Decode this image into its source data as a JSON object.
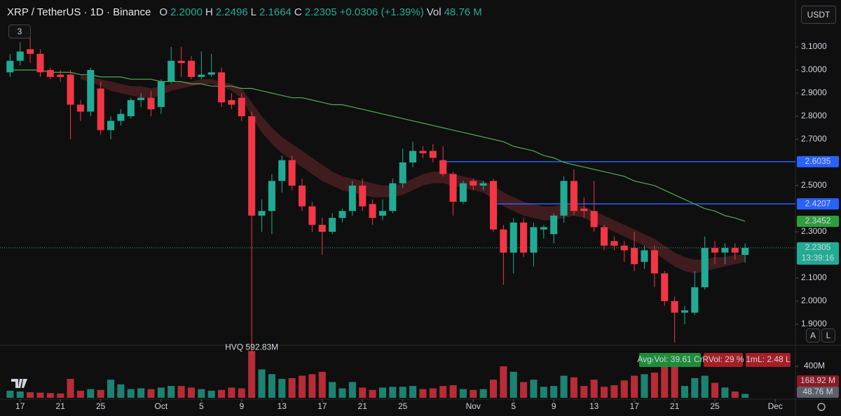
{
  "header": {
    "symbol": "XRP / TetherUS · 1D · Binance",
    "o_label": "O",
    "open": "2.2000",
    "h_label": "H",
    "high": "2.2496",
    "l_label": "L",
    "low": "2.1664",
    "c_label": "C",
    "close": "2.2305",
    "change": "+0.0306 (+1.39%)",
    "vol_label": "Vol",
    "volume": "48.76 M",
    "indicators": "3",
    "currency": "USDT",
    "buttons": [
      "A",
      "L"
    ]
  },
  "chart_data": {
    "type": "candlestick",
    "x": [
      "Sep 16",
      "Sep 17",
      "Sep 18",
      "Sep 19",
      "Sep 20",
      "Sep 21",
      "Sep 22",
      "Sep 23",
      "Sep 24",
      "Sep 25",
      "Sep 26",
      "Sep 27",
      "Sep 28",
      "Sep 29",
      "Sep 30",
      "Oct 1",
      "Oct 2",
      "Oct 3",
      "Oct 4",
      "Oct 5",
      "Oct 6",
      "Oct 7",
      "Oct 8",
      "Oct 9",
      "Oct 10",
      "Oct 11",
      "Oct 12",
      "Oct 13",
      "Oct 14",
      "Oct 15",
      "Oct 16",
      "Oct 17",
      "Oct 18",
      "Oct 19",
      "Oct 20",
      "Oct 21",
      "Oct 22",
      "Oct 23",
      "Oct 24",
      "Oct 25",
      "Oct 26",
      "Oct 27",
      "Oct 28",
      "Oct 29",
      "Oct 30",
      "Oct 31",
      "Nov 1",
      "Nov 2",
      "Nov 3",
      "Nov 4",
      "Nov 5",
      "Nov 6",
      "Nov 7",
      "Nov 8",
      "Nov 9",
      "Nov 10",
      "Nov 11",
      "Nov 12",
      "Nov 13",
      "Nov 14",
      "Nov 15",
      "Nov 16",
      "Nov 17",
      "Nov 18",
      "Nov 19",
      "Nov 20",
      "Nov 21",
      "Nov 22",
      "Nov 23",
      "Nov 24",
      "Nov 25",
      "Nov 26",
      "Nov 27",
      "Nov 28"
    ],
    "xlim": [
      "Sep 15",
      "Dec 3"
    ],
    "xticks": [
      {
        "value": "Sep 17",
        "label": "17"
      },
      {
        "value": "Sep 21",
        "label": "21"
      },
      {
        "value": "Sep 25",
        "label": "25"
      },
      {
        "value": "Oct 1",
        "label": "Oct"
      },
      {
        "value": "Oct 5",
        "label": "5"
      },
      {
        "value": "Oct 9",
        "label": "9"
      },
      {
        "value": "Oct 13",
        "label": "13"
      },
      {
        "value": "Oct 17",
        "label": "17"
      },
      {
        "value": "Oct 21",
        "label": "21"
      },
      {
        "value": "Oct 25",
        "label": "25"
      },
      {
        "value": "Nov 1",
        "label": "Nov"
      },
      {
        "value": "Nov 5",
        "label": "5"
      },
      {
        "value": "Nov 9",
        "label": "9"
      },
      {
        "value": "Nov 13",
        "label": "13"
      },
      {
        "value": "Nov 17",
        "label": "17"
      },
      {
        "value": "Nov 21",
        "label": "21"
      },
      {
        "value": "Nov 25",
        "label": "25"
      },
      {
        "value": "Dec 1",
        "label": "Dec"
      }
    ],
    "open": [
      2.99,
      3.04,
      3.09,
      3.07,
      3.0,
      2.98,
      2.98,
      2.85,
      2.82,
      2.92,
      2.74,
      2.78,
      2.8,
      2.87,
      2.88,
      2.84,
      2.95,
      3.04,
      3.04,
      2.97,
      2.98,
      2.99,
      2.87,
      2.88,
      2.8,
      2.37,
      2.39,
      2.52,
      2.61,
      2.5,
      2.41,
      2.33,
      2.3,
      2.36,
      2.39,
      2.5,
      2.42,
      2.37,
      2.39,
      2.51,
      2.6,
      2.65,
      2.65,
      2.61,
      2.55,
      2.43,
      2.52,
      2.5,
      2.52,
      2.31,
      2.21,
      2.34,
      2.21,
      2.31,
      2.29,
      2.37,
      2.52,
      2.4,
      2.39,
      2.32,
      2.26,
      2.24,
      2.23,
      2.17,
      2.22,
      2.12,
      2.0,
      1.95,
      1.95,
      2.06,
      2.23,
      2.21,
      2.23,
      2.2
    ],
    "high": [
      3.07,
      3.12,
      3.14,
      3.09,
      3.01,
      3.0,
      3.0,
      2.87,
      3.01,
      2.95,
      2.8,
      2.83,
      2.88,
      2.9,
      2.91,
      2.96,
      3.1,
      3.1,
      3.06,
      3.08,
      3.07,
      3.01,
      2.9,
      2.9,
      2.82,
      2.44,
      2.55,
      2.63,
      2.63,
      2.53,
      2.43,
      2.36,
      2.38,
      2.4,
      2.52,
      2.53,
      2.44,
      2.44,
      2.53,
      2.66,
      2.69,
      2.67,
      2.68,
      2.67,
      2.56,
      2.52,
      2.53,
      2.52,
      2.53,
      2.33,
      2.36,
      2.36,
      2.34,
      2.33,
      2.38,
      2.54,
      2.57,
      2.45,
      2.52,
      2.33,
      2.28,
      2.26,
      2.3,
      2.24,
      2.24,
      2.13,
      2.02,
      1.98,
      2.13,
      2.28,
      2.26,
      2.25,
      2.25,
      2.2496
    ],
    "low": [
      2.97,
      3.02,
      3.03,
      2.97,
      2.96,
      2.95,
      2.7,
      2.78,
      2.8,
      2.72,
      2.7,
      2.76,
      2.79,
      2.84,
      2.8,
      2.81,
      2.94,
      2.97,
      2.96,
      2.96,
      2.97,
      2.84,
      2.83,
      2.78,
      1.77,
      2.3,
      2.29,
      2.47,
      2.48,
      2.39,
      2.3,
      2.2,
      2.29,
      2.34,
      2.37,
      2.39,
      2.33,
      2.35,
      2.38,
      2.49,
      2.58,
      2.62,
      2.6,
      2.54,
      2.37,
      2.42,
      2.48,
      2.48,
      2.3,
      2.07,
      2.12,
      2.19,
      2.15,
      2.27,
      2.25,
      2.34,
      2.37,
      2.36,
      2.3,
      2.22,
      2.22,
      2.17,
      2.13,
      2.14,
      2.06,
      1.98,
      1.82,
      1.9,
      1.94,
      2.05,
      2.16,
      2.16,
      2.18,
      2.1664
    ],
    "close": [
      3.04,
      3.08,
      3.07,
      2.99,
      2.97,
      2.97,
      2.85,
      2.82,
      3.0,
      2.74,
      2.78,
      2.81,
      2.87,
      2.88,
      2.83,
      2.95,
      3.04,
      3.03,
      2.97,
      2.98,
      2.99,
      2.86,
      2.85,
      2.8,
      2.37,
      2.39,
      2.52,
      2.61,
      2.5,
      2.41,
      2.33,
      2.3,
      2.36,
      2.39,
      2.5,
      2.41,
      2.36,
      2.39,
      2.51,
      2.6,
      2.65,
      2.64,
      2.62,
      2.55,
      2.43,
      2.51,
      2.5,
      2.51,
      2.31,
      2.21,
      2.34,
      2.21,
      2.32,
      2.32,
      2.37,
      2.52,
      2.39,
      2.39,
      2.32,
      2.24,
      2.24,
      2.22,
      2.16,
      2.22,
      2.12,
      2.0,
      1.95,
      1.96,
      2.06,
      2.23,
      2.21,
      2.23,
      2.21,
      2.2305
    ],
    "up_color": "#22ab94",
    "down_color": "#f23645",
    "ylim": [
      1.812,
      3.303
    ],
    "yticks": [
      {
        "value": 1.9,
        "label": "1.9000"
      },
      {
        "value": 2.0,
        "label": "2.0000"
      },
      {
        "value": 2.1,
        "label": "2.1000"
      },
      {
        "value": 2.3,
        "label": "2.3000"
      },
      {
        "value": 2.5,
        "label": "2.5000"
      },
      {
        "value": 2.7,
        "label": "2.7000"
      },
      {
        "value": 2.8,
        "label": "2.8000"
      },
      {
        "value": 2.9,
        "label": "2.9000"
      },
      {
        "value": 3.0,
        "label": "3.0000"
      },
      {
        "value": 3.1,
        "label": "3.1000"
      }
    ],
    "ma": {
      "color": "#4caf50",
      "values": [
        3.0,
        3.0,
        3.0,
        3.0,
        2.99,
        2.99,
        2.99,
        2.98,
        2.98,
        2.97,
        2.97,
        2.97,
        2.96,
        2.96,
        2.96,
        2.95,
        2.95,
        2.95,
        2.94,
        2.94,
        2.93,
        2.93,
        2.93,
        2.92,
        2.92,
        2.91,
        2.9,
        2.89,
        2.88,
        2.88,
        2.87,
        2.86,
        2.85,
        2.85,
        2.84,
        2.83,
        2.82,
        2.81,
        2.8,
        2.79,
        2.78,
        2.77,
        2.76,
        2.75,
        2.74,
        2.73,
        2.72,
        2.71,
        2.7,
        2.69,
        2.67,
        2.66,
        2.65,
        2.63,
        2.62,
        2.6,
        2.59,
        2.58,
        2.57,
        2.56,
        2.55,
        2.54,
        2.52,
        2.51,
        2.5,
        2.48,
        2.46,
        2.44,
        2.42,
        2.4,
        2.39,
        2.37,
        2.36,
        2.3452
      ]
    },
    "band": {
      "color": "#4a1f22",
      "upper": [
        null,
        null,
        null,
        null,
        null,
        null,
        null,
        2.98,
        2.97,
        2.96,
        2.95,
        2.94,
        2.93,
        2.93,
        2.92,
        2.93,
        2.94,
        2.95,
        2.95,
        2.96,
        2.96,
        2.95,
        2.94,
        2.92,
        2.86,
        2.8,
        2.75,
        2.71,
        2.68,
        2.65,
        2.62,
        2.59,
        2.56,
        2.54,
        2.53,
        2.52,
        2.51,
        2.5,
        2.5,
        2.51,
        2.53,
        2.55,
        2.56,
        2.56,
        2.55,
        2.54,
        2.53,
        2.52,
        2.5,
        2.47,
        2.45,
        2.43,
        2.42,
        2.41,
        2.41,
        2.42,
        2.42,
        2.41,
        2.39,
        2.37,
        2.35,
        2.33,
        2.31,
        2.29,
        2.27,
        2.24,
        2.21,
        2.19,
        2.18,
        2.18,
        2.19,
        2.19,
        2.2,
        2.2
      ],
      "lower": [
        null,
        null,
        null,
        null,
        null,
        null,
        null,
        2.96,
        2.95,
        2.93,
        2.91,
        2.9,
        2.89,
        2.88,
        2.88,
        2.89,
        2.91,
        2.92,
        2.93,
        2.94,
        2.94,
        2.93,
        2.91,
        2.88,
        2.8,
        2.73,
        2.68,
        2.64,
        2.61,
        2.58,
        2.55,
        2.52,
        2.5,
        2.48,
        2.47,
        2.46,
        2.45,
        2.45,
        2.45,
        2.46,
        2.48,
        2.5,
        2.51,
        2.51,
        2.5,
        2.49,
        2.48,
        2.47,
        2.44,
        2.41,
        2.39,
        2.37,
        2.36,
        2.35,
        2.35,
        2.36,
        2.37,
        2.36,
        2.34,
        2.32,
        2.3,
        2.28,
        2.26,
        2.24,
        2.21,
        2.18,
        2.15,
        2.13,
        2.12,
        2.13,
        2.14,
        2.15,
        2.16,
        2.17
      ]
    },
    "levels": [
      {
        "value": 2.6035,
        "from": "Oct 29",
        "color": "#2962ff"
      },
      {
        "value": 2.4207,
        "from": "Nov 3",
        "color": "#2962ff"
      }
    ],
    "timer": "13:39:16",
    "volume": {
      "values": [
        90,
        80,
        70,
        65,
        60,
        55,
        240,
        90,
        110,
        100,
        230,
        170,
        110,
        120,
        110,
        130,
        150,
        150,
        130,
        110,
        90,
        100,
        130,
        120,
        592.83,
        360,
        300,
        240,
        250,
        280,
        300,
        330,
        200,
        120,
        200,
        130,
        100,
        130,
        140,
        140,
        150,
        110,
        120,
        150,
        160,
        110,
        100,
        110,
        230,
        400,
        330,
        200,
        230,
        140,
        150,
        280,
        260,
        150,
        230,
        140,
        160,
        220,
        280,
        300,
        320,
        400,
        450,
        150,
        250,
        280,
        190,
        130,
        80,
        48.76
      ],
      "ylim": [
        0,
        667
      ],
      "yticks": [
        {
          "value": 400,
          "label": "400M"
        }
      ],
      "ma_marker": {
        "value": 168.92,
        "label": "168.92 M"
      },
      "last_label": "48.76 M",
      "peak_label": "HVQ 592.83M",
      "stats": [
        "AvgₜVol: 39.61 Cr",
        "RVol: 29 %",
        "1mL: 2.48 L"
      ]
    }
  }
}
